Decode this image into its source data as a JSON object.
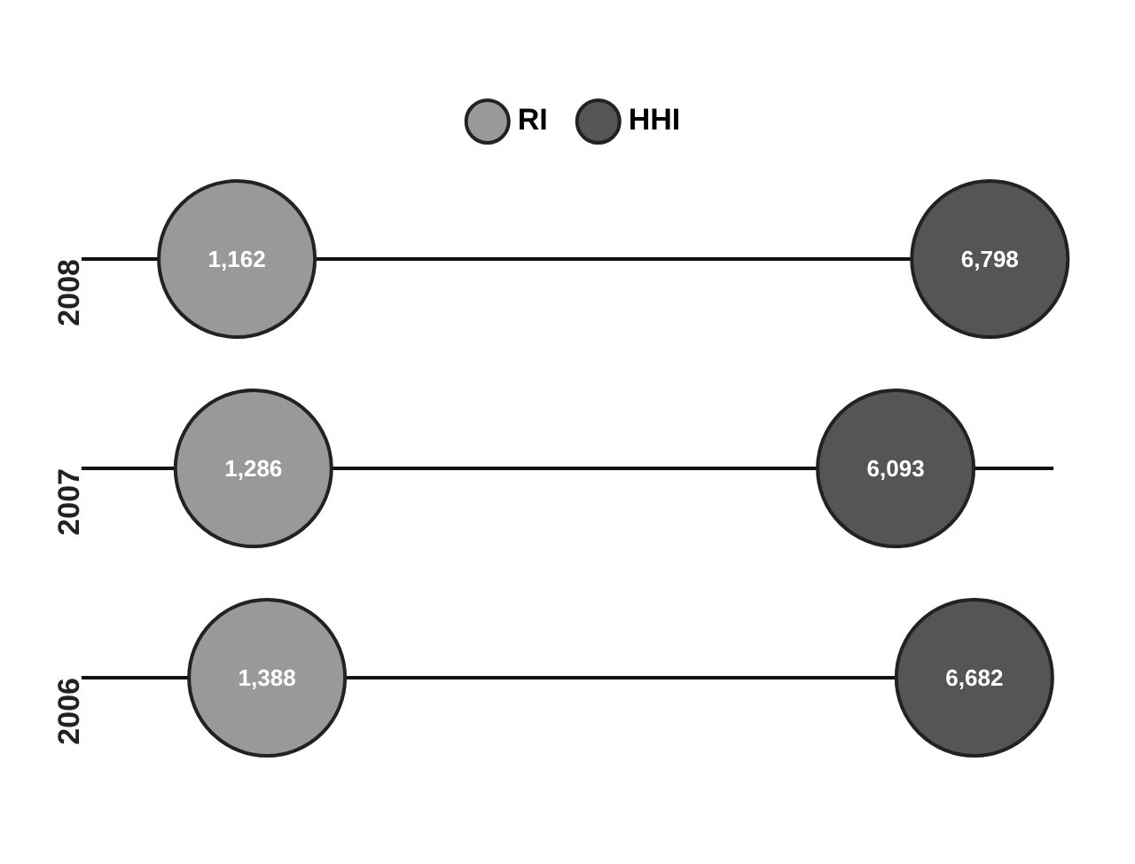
{
  "chart_data": {
    "type": "scatter",
    "orientation": "horizontal",
    "categories": [
      "2008",
      "2007",
      "2006"
    ],
    "series": [
      {
        "name": "RI",
        "color": "#999999",
        "values": [
          1162,
          1286,
          1388
        ],
        "value_labels": [
          "1,162",
          "1,286",
          "1,388"
        ]
      },
      {
        "name": "HHI",
        "color": "#555555",
        "values": [
          6798,
          6093,
          6682
        ],
        "value_labels": [
          "6,798",
          "6,093",
          "6,682"
        ]
      }
    ],
    "grid": "y",
    "legend": "top",
    "marker": "circle",
    "tick_labels": "y"
  }
}
